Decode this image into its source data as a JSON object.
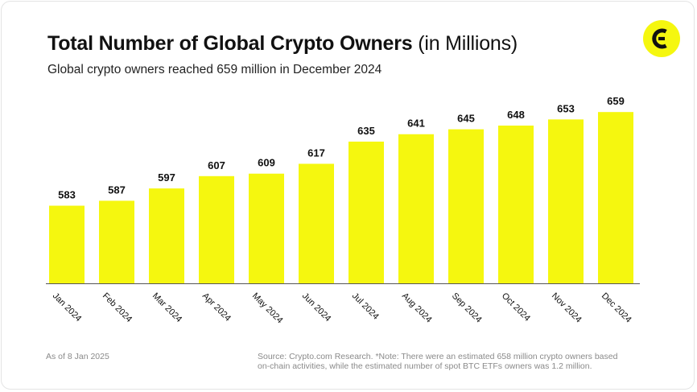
{
  "header": {
    "title_bold": "Total Number of Global Crypto Owners",
    "title_light": "(in Millions)",
    "subtitle": "Global crypto owners reached 659 million in December 2024"
  },
  "brand": {
    "logo_icon": "crypto-com-research-logo-icon",
    "accent_color": "#F5F70F",
    "text_color": "#111111"
  },
  "chart_data": {
    "type": "bar",
    "title": "Total Number of Global Crypto Owners (in Millions)",
    "subtitle": "Global crypto owners reached 659 million in December 2024",
    "categories": [
      "Jan 2024",
      "Feb 2024",
      "Mar 2024",
      "Apr 2024",
      "May 2024",
      "Jun 2024",
      "Jul 2024",
      "Aug 2024",
      "Sep 2024",
      "Oct 2024",
      "Nov 2024",
      "Dec 2024"
    ],
    "values": [
      583,
      587,
      597,
      607,
      609,
      617,
      635,
      641,
      645,
      648,
      653,
      659
    ],
    "value_labels": [
      "583",
      "587",
      "597",
      "607",
      "609",
      "617",
      "635",
      "641",
      "645",
      "648",
      "653",
      "659"
    ],
    "xlabel": "",
    "ylabel": "",
    "ylim": [
      520,
      665
    ],
    "grid": false,
    "legend": "none",
    "bar_color": "#F5F70F"
  },
  "footer": {
    "as_of": "As of 8 Jan 2025",
    "source_line1": "Source: Crypto.com Research. *Note: There were an estimated 658 million crypto owners based",
    "source_line2": "on-chain activities, while the estimated number of spot BTC ETFs owners was 1.2 million."
  }
}
